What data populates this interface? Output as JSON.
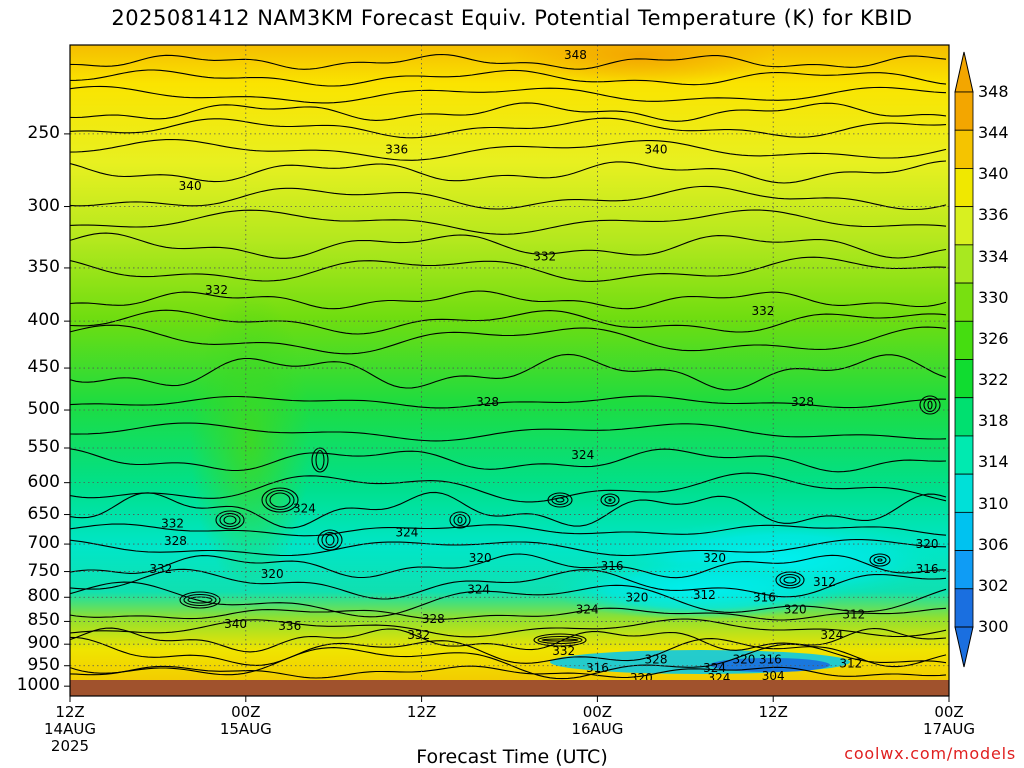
{
  "chart_data": {
    "type": "heatmap",
    "title": "2025081412 NAM3KM Forecast Equiv. Potential Temperature (K) for KBID",
    "xlabel": "Forecast Time (UTC)",
    "ylabel": "",
    "x_ticks": [
      {
        "label": "12Z",
        "sub": "14AUG",
        "sub2": "2025",
        "hour": 0
      },
      {
        "label": "00Z",
        "sub": "15AUG",
        "sub2": "",
        "hour": 12
      },
      {
        "label": "12Z",
        "sub": "",
        "sub2": "",
        "hour": 24
      },
      {
        "label": "00Z",
        "sub": "16AUG",
        "sub2": "",
        "hour": 36
      },
      {
        "label": "12Z",
        "sub": "",
        "sub2": "",
        "hour": 48
      },
      {
        "label": "00Z",
        "sub": "17AUG",
        "sub2": "",
        "hour": 60
      }
    ],
    "xlim": [
      0,
      60
    ],
    "y_ticks": [
      250,
      300,
      350,
      400,
      450,
      500,
      550,
      600,
      650,
      700,
      750,
      800,
      850,
      900,
      950,
      1000
    ],
    "ylim_hpa": [
      1025,
      200
    ],
    "y_scale": "log-pressure (inverted)",
    "grid": "dotted",
    "colorbar": {
      "levels": [
        300,
        302,
        306,
        310,
        314,
        318,
        322,
        326,
        330,
        334,
        336,
        340,
        344,
        348
      ],
      "tick_labels": [
        "348",
        "344",
        "340",
        "336",
        "334",
        "330",
        "326",
        "322",
        "318",
        "314",
        "310",
        "306",
        "302",
        "300"
      ],
      "colors": [
        "#1a6fe0",
        "#0f9cf5",
        "#00c2f0",
        "#00e0d8",
        "#00eab0",
        "#00e070",
        "#10dc30",
        "#45dd10",
        "#78e010",
        "#a8e820",
        "#d8f020",
        "#f0e800",
        "#f5c400",
        "#f3a600"
      ]
    },
    "contour_labels": [
      {
        "text": "348",
        "hour": 34.5,
        "p": 205
      },
      {
        "text": "336",
        "hour": 22.3,
        "p": 260
      },
      {
        "text": "340",
        "hour": 40.0,
        "p": 260
      },
      {
        "text": "340",
        "hour": 8.2,
        "p": 285
      },
      {
        "text": "332",
        "hour": 32.4,
        "p": 340
      },
      {
        "text": "332",
        "hour": 10.0,
        "p": 370
      },
      {
        "text": "332",
        "hour": 47.3,
        "p": 390
      },
      {
        "text": "328",
        "hour": 28.5,
        "p": 490
      },
      {
        "text": "328",
        "hour": 50.0,
        "p": 490
      },
      {
        "text": "324",
        "hour": 35.0,
        "p": 560
      },
      {
        "text": "324",
        "hour": 16.0,
        "p": 640
      },
      {
        "text": "324",
        "hour": 23.0,
        "p": 680
      },
      {
        "text": "332",
        "hour": 7.0,
        "p": 665
      },
      {
        "text": "328",
        "hour": 7.2,
        "p": 695
      },
      {
        "text": "320",
        "hour": 58.5,
        "p": 700
      },
      {
        "text": "320",
        "hour": 28.0,
        "p": 725
      },
      {
        "text": "320",
        "hour": 44.0,
        "p": 725
      },
      {
        "text": "332",
        "hour": 6.2,
        "p": 745
      },
      {
        "text": "320",
        "hour": 13.8,
        "p": 755
      },
      {
        "text": "316",
        "hour": 37.0,
        "p": 740
      },
      {
        "text": "316",
        "hour": 58.5,
        "p": 745
      },
      {
        "text": "312",
        "hour": 51.5,
        "p": 770
      },
      {
        "text": "324",
        "hour": 27.9,
        "p": 785
      },
      {
        "text": "320",
        "hour": 38.7,
        "p": 800
      },
      {
        "text": "312",
        "hour": 43.3,
        "p": 795
      },
      {
        "text": "316",
        "hour": 47.4,
        "p": 800
      },
      {
        "text": "324",
        "hour": 35.3,
        "p": 825
      },
      {
        "text": "320",
        "hour": 49.5,
        "p": 825
      },
      {
        "text": "312",
        "hour": 53.5,
        "p": 835
      },
      {
        "text": "340",
        "hour": 11.3,
        "p": 855
      },
      {
        "text": "336",
        "hour": 15.0,
        "p": 860
      },
      {
        "text": "328",
        "hour": 24.8,
        "p": 845
      },
      {
        "text": "332",
        "hour": 23.8,
        "p": 880
      },
      {
        "text": "324",
        "hour": 52.0,
        "p": 880
      },
      {
        "text": "332",
        "hour": 33.7,
        "p": 915
      },
      {
        "text": "328",
        "hour": 40.0,
        "p": 935
      },
      {
        "text": "320",
        "hour": 46.0,
        "p": 935
      },
      {
        "text": "316",
        "hour": 47.8,
        "p": 935
      },
      {
        "text": "312",
        "hour": 53.3,
        "p": 945
      },
      {
        "text": "316",
        "hour": 36.0,
        "p": 955
      },
      {
        "text": "324",
        "hour": 44.0,
        "p": 955
      },
      {
        "text": "320",
        "hour": 39.0,
        "p": 980
      },
      {
        "text": "324",
        "hour": 44.3,
        "p": 980
      },
      {
        "text": "304",
        "hour": 48.0,
        "p": 975
      }
    ]
  },
  "credit": "coolwx.com/models"
}
